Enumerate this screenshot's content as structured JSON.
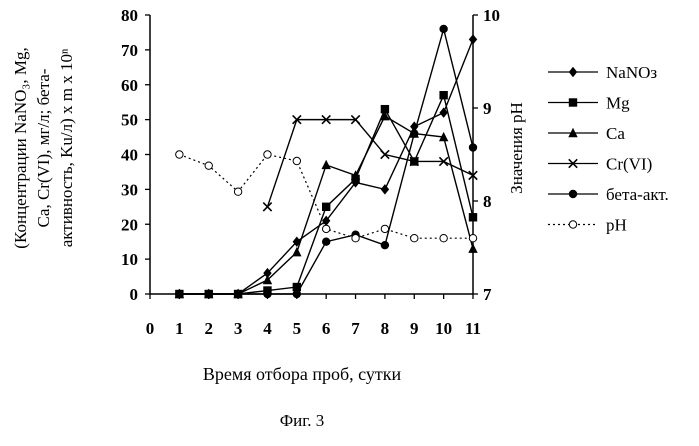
{
  "caption": "Фиг. 3",
  "chart_data": {
    "type": "line",
    "title": "",
    "xlabel": "Время отбора проб, сутки",
    "ylabel": "(Концентрации NaNO3, Mg, Ca, Cr(VI), мг/л; бета-активность, Ku/л) x m x 10^n",
    "ylabel_lines": [
      "(Концентрации NaNO₃, Mg,",
      "Ca, Cr(VI), мг/л; бета-",
      "активность, Ku/л) x m x 10ⁿ"
    ],
    "y2label": "Значения pH",
    "x_ticks": [
      "0",
      "1",
      "2",
      "3",
      "4",
      "5",
      "6",
      "7",
      "8",
      "9",
      "10",
      "11"
    ],
    "y_ticks": [
      "0",
      "10",
      "20",
      "30",
      "40",
      "50",
      "60",
      "70",
      "80"
    ],
    "y2_ticks": [
      "7",
      "8",
      "9",
      "10"
    ],
    "xlim": [
      0,
      11
    ],
    "ylim": [
      0,
      80
    ],
    "y2lim": [
      7,
      10
    ],
    "legend_position": "right",
    "series": [
      {
        "name": "NaNO3",
        "label": "NaNOз",
        "marker": "diamond",
        "line": "solid",
        "axis": "left",
        "x": [
          1,
          2,
          3,
          4,
          5,
          6,
          7,
          8,
          9,
          10,
          11
        ],
        "y": [
          0,
          0,
          0,
          6,
          15,
          21,
          32,
          30,
          48,
          52,
          73
        ]
      },
      {
        "name": "Mg",
        "label": "Mg",
        "marker": "square",
        "line": "solid",
        "axis": "left",
        "x": [
          1,
          2,
          3,
          4,
          5,
          6,
          7,
          8,
          9,
          10,
          11
        ],
        "y": [
          0,
          0,
          0,
          1,
          2,
          25,
          33,
          53,
          38,
          57,
          22
        ]
      },
      {
        "name": "Ca",
        "label": "Ca",
        "marker": "triangle",
        "line": "solid",
        "axis": "left",
        "x": [
          1,
          2,
          3,
          4,
          5,
          6,
          7,
          8,
          9,
          10,
          11
        ],
        "y": [
          0,
          0,
          0,
          4,
          12,
          37,
          34,
          51,
          46,
          45,
          13
        ]
      },
      {
        "name": "Cr(VI)",
        "label": "Cr(VI)",
        "marker": "x",
        "line": "solid",
        "axis": "left",
        "x": [
          4,
          5,
          6,
          7,
          8,
          9,
          10,
          11
        ],
        "y": [
          25,
          50,
          50,
          50,
          40,
          38,
          38,
          34
        ]
      },
      {
        "name": "бета-акт.",
        "label": "бета-акт.",
        "marker": "circle",
        "line": "solid",
        "axis": "left",
        "x": [
          1,
          2,
          3,
          4,
          5,
          6,
          7,
          8,
          9,
          10,
          11
        ],
        "y": [
          0,
          0,
          0,
          0,
          0,
          15,
          17,
          14,
          46,
          76,
          42
        ]
      },
      {
        "name": "pH",
        "label": "pH",
        "marker": "open-circle",
        "line": "dotted",
        "axis": "right",
        "x": [
          1,
          2,
          3,
          4,
          5,
          6,
          7,
          8,
          9,
          10,
          11
        ],
        "y": [
          8.5,
          8.38,
          8.1,
          8.5,
          8.43,
          7.7,
          7.6,
          7.7,
          7.6,
          7.6,
          7.6
        ]
      }
    ]
  }
}
